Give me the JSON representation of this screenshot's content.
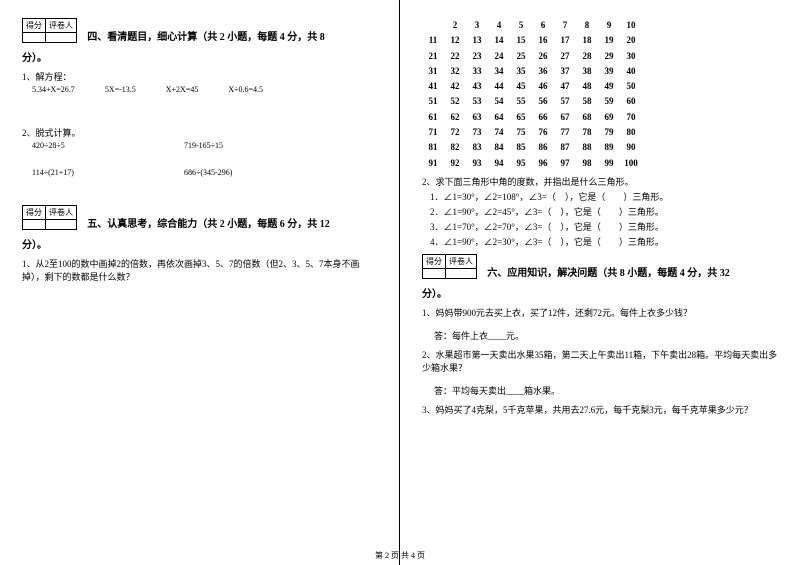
{
  "score_labels": {
    "score": "得分",
    "grader": "评卷人"
  },
  "section4": {
    "title_a": "四、看清题目，细心计算（共 2 小题，每题 4 分，共 8",
    "title_b": "分）。",
    "q1_label": "1、解方程：",
    "eqs": [
      "5.34+X=26.7",
      "5X=-13.5",
      "X+2X=45",
      "X÷0.6=4.5"
    ],
    "q2_label": "2、脱式计算。",
    "calc1a": "420÷28÷5",
    "calc1b": "719-165÷15",
    "calc2a": "114÷(21+17)",
    "calc2b": "686÷(345-296)"
  },
  "section5": {
    "title_a": "五、认真思考，综合能力（共 2 小题，每题 6 分，共 12",
    "title_b": "分）。",
    "q1": "1、从2至100的数中画掉2的倍数，再依次画掉3、5、7的倍数（但2、3、5、7本身不画掉），剩下的数都是什么数？",
    "grid": {
      "row1": [
        "2",
        "3",
        "4",
        "5",
        "6",
        "7",
        "8",
        "9",
        "10"
      ],
      "rows": [
        [
          "11",
          "12",
          "13",
          "14",
          "15",
          "16",
          "17",
          "18",
          "19",
          "20"
        ],
        [
          "21",
          "22",
          "23",
          "24",
          "25",
          "26",
          "27",
          "28",
          "29",
          "30"
        ],
        [
          "31",
          "32",
          "33",
          "34",
          "35",
          "36",
          "37",
          "38",
          "39",
          "40"
        ],
        [
          "41",
          "42",
          "43",
          "44",
          "45",
          "46",
          "47",
          "48",
          "49",
          "50"
        ],
        [
          "51",
          "52",
          "53",
          "54",
          "55",
          "56",
          "57",
          "58",
          "59",
          "60"
        ],
        [
          "61",
          "62",
          "63",
          "64",
          "65",
          "66",
          "67",
          "68",
          "69",
          "70"
        ],
        [
          "71",
          "72",
          "73",
          "74",
          "75",
          "76",
          "77",
          "78",
          "79",
          "80"
        ],
        [
          "81",
          "82",
          "83",
          "84",
          "85",
          "86",
          "87",
          "88",
          "89",
          "90"
        ],
        [
          "91",
          "92",
          "93",
          "94",
          "95",
          "96",
          "97",
          "98",
          "99",
          "100"
        ]
      ]
    },
    "q2_label": "2、求下面三角形中角的度数，并指出是什么三角形。",
    "tri1": "1．∠1=30°，∠2=108°，∠3=（　），它是（　　）三角形。",
    "tri2": "2．∠1=90°，∠2=45°，∠3=（　），它是（　　）三角形。",
    "tri3": "3．∠1=70°，∠2=70°，∠3=（　），它是（　　）三角形。",
    "tri4": "4．∠1=90°，∠2=30°，∠3=（　），它是（　　）三角形。"
  },
  "section6": {
    "title_a": "六、应用知识，解决问题（共 8 小题，每题 4 分，共 32",
    "title_b": "分）。",
    "q1": "1、妈妈带900元去买上衣，买了12件，还剩72元。每件上衣多少钱？",
    "a1": "答：每件上衣____元。",
    "q2": "2、水果超市第一天卖出水果35箱，第二天上午卖出11箱，下午卖出28箱。平均每天卖出多少箱水果？",
    "a2": "答：平均每天卖出____箱水果。",
    "q3": "3、妈妈买了4克梨，5千克苹果，共用去27.6元，每千克梨3元，每千克苹果多少元？"
  },
  "footer": "第 2 页 共 4 页"
}
